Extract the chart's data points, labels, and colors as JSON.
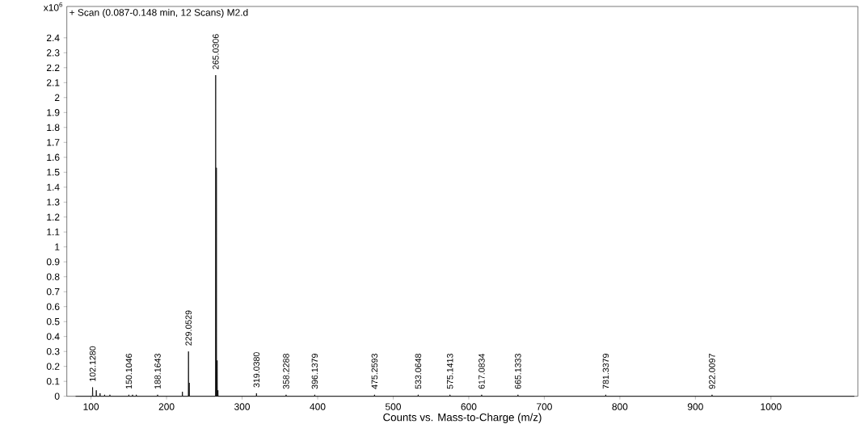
{
  "chart_data": {
    "type": "line",
    "title": "+ Scan (0.087-0.148 min, 12 Scans) M2.d",
    "xlabel": "Counts vs. Mass-to-Charge (m/z)",
    "ylabel": "x10$^{6}$",
    "x": [
      80,
      101.83,
      102.128,
      102.43,
      106.7,
      107,
      107.3,
      111.7,
      112,
      112.3,
      117.7,
      118,
      118.3,
      124.7,
      125,
      125.3,
      149.8,
      150.1046,
      150.4,
      154.7,
      155,
      155.3,
      159.7,
      160,
      160.3,
      187.86,
      188.1643,
      188.46,
      220.7,
      221,
      221.3,
      228.75,
      229.0529,
      229.35,
      229.75,
      230.05,
      230.35,
      264.73,
      265.0306,
      265.33,
      265.73,
      266.03,
      266.33,
      266.73,
      267.03,
      267.33,
      267.73,
      268.03,
      268.33,
      318.74,
      319.038,
      319.34,
      357.93,
      358.2288,
      358.53,
      395.84,
      396.1379,
      396.44,
      474.96,
      475.2593,
      475.56,
      532.76,
      533.0648,
      533.36,
      574.84,
      575.1413,
      575.44,
      616.78,
      617.0834,
      617.38,
      664.83,
      665.1333,
      665.43,
      781.04,
      781.3379,
      781.64,
      921.71,
      922.0097,
      922.31,
      1110
    ],
    "values": [
      0,
      0,
      0.06,
      0,
      0,
      0.04,
      0,
      0,
      0.02,
      0,
      0,
      0.01,
      0,
      0,
      0.01,
      0,
      0,
      0.01,
      0,
      0,
      0.01,
      0,
      0,
      0.01,
      0,
      0,
      0.01,
      0,
      0,
      0.03,
      0,
      0,
      0.3,
      0,
      0,
      0.09,
      0,
      0,
      2.15,
      0,
      0,
      1.53,
      0,
      0,
      0.24,
      0,
      0,
      0.04,
      0,
      0,
      0.02,
      0,
      0,
      0.01,
      0,
      0,
      0.01,
      0,
      0,
      0.01,
      0,
      0,
      0.01,
      0,
      0,
      0.01,
      0,
      0,
      0.01,
      0,
      0,
      0.01,
      0,
      0,
      0.01,
      0,
      0,
      0.01,
      0,
      0
    ],
    "color": "#000000",
    "xlim": [
      68,
      1115
    ],
    "ylim": [
      0,
      2.61
    ],
    "xticks": [
      100,
      200,
      300,
      400,
      500,
      600,
      700,
      800,
      900,
      1000
    ],
    "yticks": [
      0,
      0.1,
      0.2,
      0.3,
      0.4,
      0.5,
      0.6,
      0.7,
      0.8,
      0.9,
      1,
      1.1,
      1.2,
      1.3,
      1.4,
      1.5,
      1.6,
      1.7,
      1.8,
      1.9,
      2,
      2.1,
      2.2,
      2.3,
      2.4
    ],
    "grid": false,
    "annotations": [
      {
        "text": "102.1280",
        "x": 102.128,
        "y": 0.06
      },
      {
        "text": "150.1046",
        "x": 150.1046,
        "y": 0.01
      },
      {
        "text": "188.1643",
        "x": 188.1643,
        "y": 0.01
      },
      {
        "text": "229.0529",
        "x": 229.0529,
        "y": 0.3
      },
      {
        "text": "265.0306",
        "x": 265.0306,
        "y": 2.15
      },
      {
        "text": "319.0380",
        "x": 319.038,
        "y": 0.02
      },
      {
        "text": "358.2288",
        "x": 358.2288,
        "y": 0.01
      },
      {
        "text": "396.1379",
        "x": 396.1379,
        "y": 0.01
      },
      {
        "text": "475.2593",
        "x": 475.2593,
        "y": 0.01
      },
      {
        "text": "533.0648",
        "x": 533.0648,
        "y": 0.01
      },
      {
        "text": "575.1413",
        "x": 575.1413,
        "y": 0.01
      },
      {
        "text": "617.0834",
        "x": 617.0834,
        "y": 0.01
      },
      {
        "text": "665.1333",
        "x": 665.1333,
        "y": 0.01
      },
      {
        "text": "781.3379",
        "x": 781.3379,
        "y": 0.01
      },
      {
        "text": "922.0097",
        "x": 922.0097,
        "y": 0.01
      }
    ]
  }
}
